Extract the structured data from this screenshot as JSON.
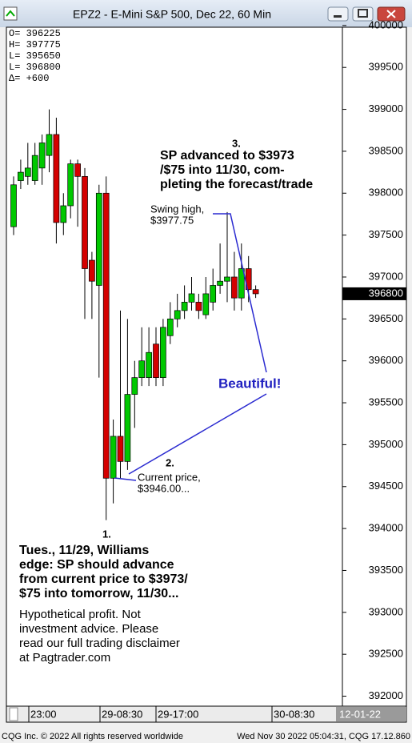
{
  "chart_data": {
    "type": "candlestick",
    "title": "EPZ2 - E-Mini S&P 500, Dec 22, 60 Min",
    "open": [
      397600,
      398150,
      398200,
      398150,
      398300,
      398450,
      398700,
      397650,
      397850,
      398350,
      398200,
      397200,
      396900,
      398000,
      394600,
      395100,
      394800,
      395600,
      395800,
      395800,
      396200,
      395800,
      396300,
      396500,
      396600,
      396700,
      396700,
      396550,
      396700,
      396900,
      396950,
      397000,
      396750,
      397100,
      396850
    ],
    "high": [
      398200,
      398400,
      398600,
      398600,
      398700,
      399000,
      398900,
      398000,
      398400,
      398400,
      398300,
      397300,
      398100,
      398200,
      395300,
      396600,
      396500,
      396000,
      396400,
      396400,
      396400,
      396500,
      396700,
      396800,
      396900,
      397000,
      396800,
      397000,
      397100,
      397400,
      397775,
      397300,
      397400,
      397250,
      396900
    ],
    "low": [
      397500,
      398050,
      398100,
      398100,
      398100,
      398250,
      397400,
      397500,
      397700,
      397600,
      396500,
      396500,
      395800,
      394100,
      394300,
      394600,
      394700,
      395200,
      395700,
      395700,
      395700,
      395700,
      396200,
      396400,
      396500,
      396600,
      396500,
      396500,
      396600,
      396800,
      396700,
      396600,
      396600,
      396700,
      396750
    ],
    "close": [
      398100,
      398250,
      398300,
      398450,
      398600,
      398700,
      397650,
      397850,
      398350,
      398200,
      397100,
      396950,
      398000,
      394600,
      395100,
      394800,
      395600,
      395800,
      396000,
      396100,
      395800,
      396400,
      396500,
      396600,
      396700,
      396800,
      396600,
      396800,
      396900,
      396950,
      397000,
      396750,
      397100,
      396850,
      396800
    ],
    "up_color": "#00c800",
    "down_color": "#d40000",
    "ylim": [
      391900,
      399970
    ],
    "yticks": [
      392000,
      392500,
      393000,
      393500,
      394000,
      394500,
      395000,
      395500,
      396000,
      396500,
      397000,
      397500,
      398000,
      398500,
      399000,
      399500,
      400000
    ],
    "last_price": 396800,
    "info": [
      "O= 396225",
      "H= 397775",
      "L= 395650",
      "L= 396800",
      "Δ=     +600"
    ],
    "x_labels": [
      "23:00",
      "29-08:30",
      "29-17:00",
      "30-08:30",
      "12-01-22"
    ],
    "annotations": [
      "3.",
      "SP advanced to $3973",
      "/$75 into 11/30, com-",
      "pleting the forecast/trade",
      "Swing high,",
      "$3977.75",
      "Beautiful!",
      "2.",
      "Current price,",
      "$3946.00...",
      "1.",
      "Tues., 11/29, Williams",
      "edge: SP should advance",
      "from current price to $3973/",
      "$75 into tomorrow, 11/30...",
      "Hypothetical profit. Not",
      "investment advice. Please",
      "read our full trading disclaimer",
      "at Pagtrader.com"
    ],
    "footer_left": "CQG Inc. © 2022 All rights reserved worldwide",
    "footer_right": "Wed Nov 30 2022 05:04:31, CQG 17.12.860"
  }
}
